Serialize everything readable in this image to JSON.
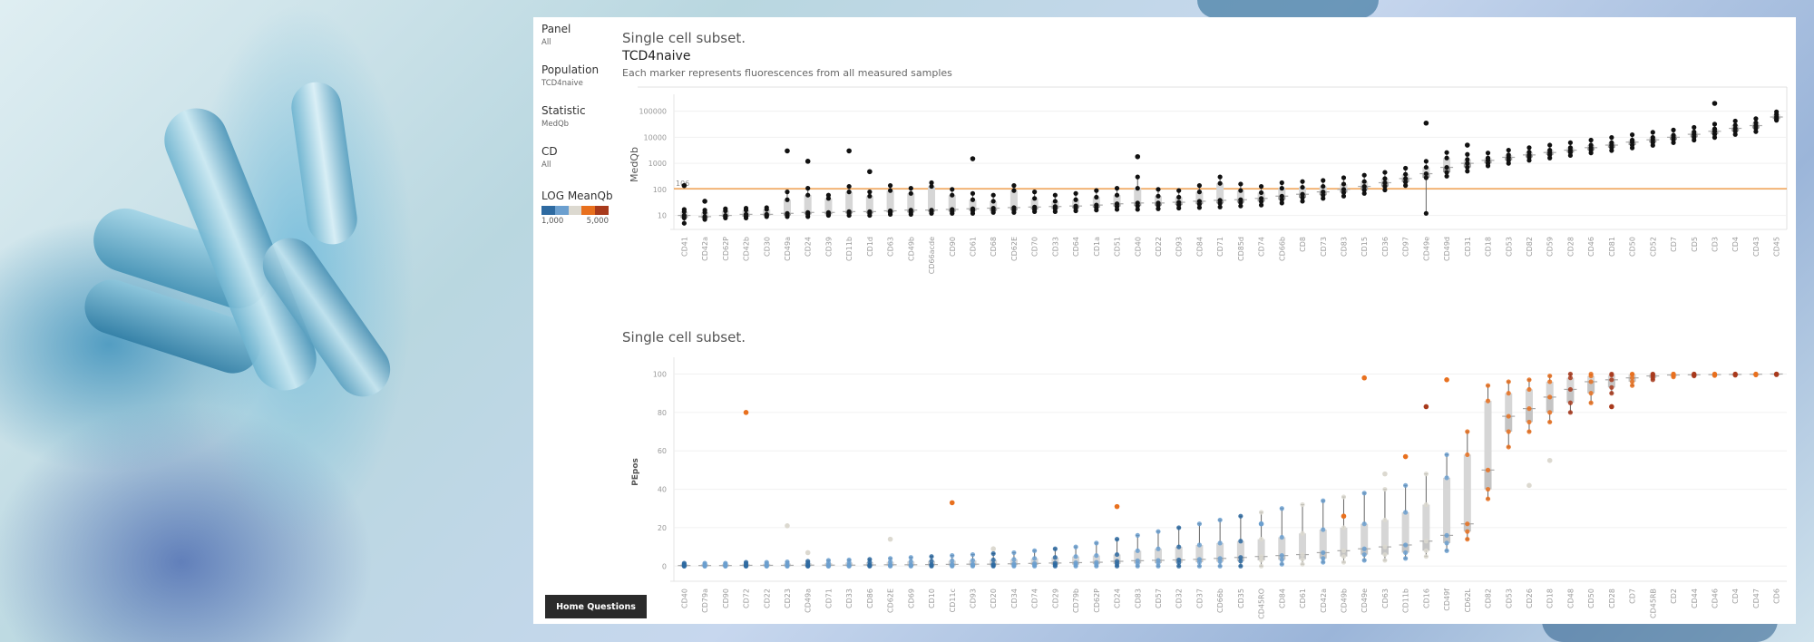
{
  "filters": [
    {
      "label": "Panel",
      "value": "All"
    },
    {
      "label": "Population",
      "value": "TCD4naive"
    },
    {
      "label": "Statistic",
      "value": "MedQb"
    },
    {
      "label": "CD",
      "value": "All"
    }
  ],
  "legend": {
    "title": "LOG MeanQb",
    "colors": [
      "#2e6aa1",
      "#6b9fcf",
      "#dcd9d0",
      "#e8701e",
      "#a83a1c"
    ],
    "min_label": "1,000",
    "max_label": "5,000"
  },
  "home_button": "Home Questions",
  "chart_data": [
    {
      "type": "boxplot",
      "title": "Single cell subset.",
      "subtitle": "TCD4naive",
      "caption": "Each marker represents fluorescences from all measured samples",
      "xlabel": "",
      "ylabel": "MedQb",
      "yscale": "log",
      "ylim": [
        4,
        200000
      ],
      "yticks": [
        10,
        100,
        1000,
        10000,
        100000
      ],
      "ytick_labels": [
        "10",
        "100",
        "1000",
        "10000",
        "100000"
      ],
      "reference_line": {
        "value": 106,
        "label": "106",
        "color": "#f0a050"
      },
      "grid": true,
      "categories": [
        "CD41",
        "CD42a",
        "CD62P",
        "CD42b",
        "CD30",
        "CD49a",
        "CD24",
        "CD39",
        "CD11b",
        "CD1d",
        "CD63",
        "CD49b",
        "CD66acde",
        "CD90",
        "CD61",
        "CD68",
        "CD62E",
        "CD70",
        "CD33",
        "CD64",
        "CD1a",
        "CD51",
        "CD40",
        "CD22",
        "CD93",
        "CD84",
        "CD71",
        "CD85d",
        "CD74",
        "CD66b",
        "CD8",
        "CD73",
        "CD83",
        "CD15",
        "CD36",
        "CD97",
        "CD49e",
        "CD49d",
        "CD31",
        "CD18",
        "CD53",
        "CD82",
        "CD59",
        "CD28",
        "CD46",
        "CD81",
        "CD50",
        "CD52",
        "CD7",
        "CD5",
        "CD3",
        "CD4",
        "CD43",
        "CD45"
      ],
      "medians": [
        10,
        9,
        10,
        11,
        11,
        12,
        13,
        13,
        14,
        14,
        15,
        16,
        16,
        17,
        18,
        19,
        20,
        21,
        22,
        23,
        25,
        28,
        30,
        30,
        32,
        35,
        38,
        40,
        45,
        55,
        65,
        80,
        100,
        130,
        180,
        260,
        400,
        700,
        1000,
        1300,
        1700,
        2100,
        2600,
        3200,
        4000,
        5000,
        6500,
        8000,
        10000,
        13000,
        17000,
        22000,
        28000,
        60000
      ],
      "q1": [
        8,
        8,
        9,
        9,
        10,
        10,
        11,
        11,
        12,
        12,
        13,
        13,
        14,
        14,
        15,
        15,
        16,
        17,
        18,
        19,
        20,
        22,
        23,
        24,
        25,
        27,
        29,
        31,
        34,
        40,
        48,
        60,
        75,
        95,
        130,
        190,
        280,
        450,
        700,
        1000,
        1300,
        1700,
        2100,
        2600,
        3200,
        4000,
        5000,
        6300,
        8000,
        10000,
        13000,
        17000,
        22000,
        50000
      ],
      "q3": [
        14,
        13,
        15,
        16,
        17,
        40,
        60,
        45,
        80,
        55,
        90,
        70,
        130,
        60,
        40,
        35,
        90,
        45,
        35,
        40,
        50,
        60,
        110,
        55,
        50,
        80,
        170,
        90,
        75,
        110,
        120,
        130,
        160,
        200,
        260,
        380,
        700,
        1600,
        1400,
        1600,
        2100,
        2700,
        3200,
        4000,
        5000,
        6200,
        7800,
        9800,
        12000,
        16000,
        21000,
        29000,
        36000,
        75000
      ],
      "whisker_low": [
        5,
        7,
        8,
        8,
        9,
        9,
        9,
        10,
        10,
        10,
        11,
        11,
        12,
        12,
        12,
        13,
        13,
        14,
        14,
        15,
        16,
        17,
        17,
        18,
        19,
        20,
        21,
        23,
        25,
        30,
        35,
        45,
        55,
        70,
        95,
        140,
        12,
        320,
        500,
        800,
        1000,
        1300,
        1600,
        2000,
        2500,
        3100,
        3900,
        4900,
        6200,
        7800,
        9800,
        12800,
        16500,
        45000
      ],
      "whisker_high": [
        17,
        16,
        18,
        19,
        20,
        80,
        110,
        60,
        130,
        80,
        140,
        110,
        180,
        100,
        70,
        60,
        140,
        80,
        60,
        70,
        90,
        110,
        300,
        100,
        90,
        140,
        300,
        160,
        130,
        180,
        200,
        220,
        280,
        350,
        450,
        650,
        1200,
        2600,
        2200,
        2500,
        3200,
        4000,
        5000,
        6200,
        7800,
        9800,
        12500,
        15500,
        19000,
        24000,
        32000,
        42000,
        52000,
        95000
      ],
      "outliers": [
        {
          "category": "CD41",
          "value": 140
        },
        {
          "category": "CD42a",
          "value": 35
        },
        {
          "category": "CD49a",
          "value": 3000
        },
        {
          "category": "CD24",
          "value": 1200
        },
        {
          "category": "CD11b",
          "value": 3000
        },
        {
          "category": "CD1d",
          "value": 480
        },
        {
          "category": "CD61",
          "value": 1500
        },
        {
          "category": "CD40",
          "value": 1800
        },
        {
          "category": "CD31",
          "value": 5000
        },
        {
          "category": "CD49e",
          "value": 35000
        },
        {
          "category": "CD3",
          "value": 200000
        }
      ]
    },
    {
      "type": "boxplot",
      "title": "Single cell subset.",
      "xlabel": "",
      "ylabel": "PEpos",
      "yscale": "linear",
      "ylim": [
        -6,
        104
      ],
      "yticks": [
        0,
        20,
        40,
        60,
        80,
        100
      ],
      "ytick_labels": [
        "0",
        "20",
        "40",
        "60",
        "80",
        "100"
      ],
      "grid": true,
      "color_by": "LOG MeanQb",
      "categories": [
        "CD40",
        "CD79a",
        "CD90",
        "CD72",
        "CD22",
        "CD23",
        "CD49a",
        "CD71",
        "CD33",
        "CD86",
        "CD62E",
        "CD69",
        "CD10",
        "CD11c",
        "CD93",
        "CD20",
        "CD34",
        "CD74",
        "CD29",
        "CD79b",
        "CD62P",
        "CD24",
        "CD83",
        "CD57",
        "CD32",
        "CD37",
        "CD66b",
        "CD35",
        "CD45RO",
        "CD84",
        "CD61",
        "CD42a",
        "CD49b",
        "CD49e",
        "CD63",
        "CD11b",
        "CD16",
        "CD49f",
        "CD62L",
        "CD82",
        "CD53",
        "CD26",
        "CD18",
        "CD48",
        "CD50",
        "CD28",
        "CD7",
        "CD45RB",
        "CD2",
        "CD44",
        "CD46",
        "CD4",
        "CD47",
        "CD6"
      ],
      "medians": [
        0.3,
        0.3,
        0.3,
        0.4,
        0.4,
        0.4,
        0.5,
        0.5,
        0.5,
        0.6,
        0.7,
        0.7,
        0.8,
        0.9,
        1,
        1,
        1.2,
        1.4,
        1.6,
        1.8,
        2,
        2.5,
        2.8,
        3,
        3.2,
        3.5,
        4,
        4.5,
        5,
        5.5,
        6,
        7,
        8,
        9,
        10,
        11,
        13,
        16,
        22,
        50,
        78,
        82,
        88,
        92,
        96,
        97,
        98,
        99,
        99.5,
        99.6,
        99.7,
        99.8,
        99.9,
        100
      ],
      "q1": [
        0,
        0,
        0,
        0,
        0,
        0,
        0,
        0,
        0.1,
        0.1,
        0.2,
        0.2,
        0.3,
        0.3,
        0.4,
        0.4,
        0.5,
        0.6,
        0.7,
        0.8,
        1,
        1.2,
        1.4,
        1.6,
        1.8,
        2,
        2.3,
        2.6,
        3,
        3.3,
        3.6,
        4,
        5,
        6,
        6,
        7,
        8,
        12,
        18,
        40,
        70,
        75,
        80,
        85,
        90,
        93,
        96,
        98,
        99,
        99.3,
        99.5,
        99.6,
        99.7,
        99.8
      ],
      "q3": [
        1,
        1,
        1,
        1.2,
        1.2,
        1.3,
        1.5,
        1.6,
        1.8,
        2,
        2.2,
        2.4,
        2.6,
        2.8,
        3,
        3.2,
        3.5,
        4,
        4.5,
        5,
        5.5,
        6,
        8,
        9,
        10,
        11,
        12,
        13,
        14,
        15,
        17,
        19,
        20,
        22,
        24,
        28,
        32,
        46,
        58,
        86,
        90,
        92,
        96,
        98,
        99,
        99.5,
        99.8,
        99.9,
        100,
        100,
        100,
        100,
        100,
        100
      ],
      "whisker_low": [
        0,
        0,
        0,
        0,
        0,
        0,
        0,
        0,
        0,
        0,
        0,
        0,
        0,
        0,
        0,
        0,
        0,
        0,
        0,
        0,
        0,
        0,
        0,
        0,
        0,
        0,
        0,
        0,
        0,
        1,
        1,
        2,
        2,
        3,
        3,
        4,
        5,
        8,
        14,
        35,
        62,
        70,
        75,
        80,
        85,
        90,
        94,
        97,
        98.5,
        99,
        99.2,
        99.4,
        99.5,
        99.6
      ],
      "whisker_high": [
        1.5,
        1.5,
        1.5,
        2,
        2,
        2.2,
        2.5,
        3,
        3.2,
        3.5,
        4,
        4.5,
        5,
        5.5,
        6,
        6.5,
        7,
        8,
        9,
        10,
        12,
        14,
        16,
        18,
        20,
        22,
        24,
        26,
        28,
        30,
        32,
        34,
        36,
        38,
        40,
        42,
        48,
        58,
        70,
        94,
        96,
        97,
        99,
        100,
        100,
        100,
        100,
        100,
        100,
        100,
        100,
        100,
        100,
        100
      ],
      "outliers": [
        {
          "category": "CD72",
          "value": 80,
          "color": "#e8701e"
        },
        {
          "category": "CD23",
          "value": 21,
          "color": "#dcd9d0"
        },
        {
          "category": "CD49a",
          "value": 7,
          "color": "#dcd9d0"
        },
        {
          "category": "CD11c",
          "value": 33,
          "color": "#e8701e"
        },
        {
          "category": "CD62E",
          "value": 14,
          "color": "#dcd9d0"
        },
        {
          "category": "CD20",
          "value": 9,
          "color": "#dcd9d0"
        },
        {
          "category": "CD24",
          "value": 31,
          "color": "#e8701e"
        },
        {
          "category": "CD45RO",
          "value": 22,
          "color": "#6b9fcf"
        },
        {
          "category": "CD49b",
          "value": 26,
          "color": "#e8701e"
        },
        {
          "category": "CD49e",
          "value": 98,
          "color": "#e8701e"
        },
        {
          "category": "CD63",
          "value": 48,
          "color": "#dcd9d0"
        },
        {
          "category": "CD11b",
          "value": 57,
          "color": "#e8701e"
        },
        {
          "category": "CD49f",
          "value": 97,
          "color": "#e8701e"
        },
        {
          "category": "CD16",
          "value": 83,
          "color": "#a83a1c"
        },
        {
          "category": "CD26",
          "value": 42,
          "color": "#dcd9d0"
        },
        {
          "category": "CD18",
          "value": 55,
          "color": "#dcd9d0"
        },
        {
          "category": "CD28",
          "value": 83,
          "color": "#a83a1c"
        }
      ]
    }
  ]
}
